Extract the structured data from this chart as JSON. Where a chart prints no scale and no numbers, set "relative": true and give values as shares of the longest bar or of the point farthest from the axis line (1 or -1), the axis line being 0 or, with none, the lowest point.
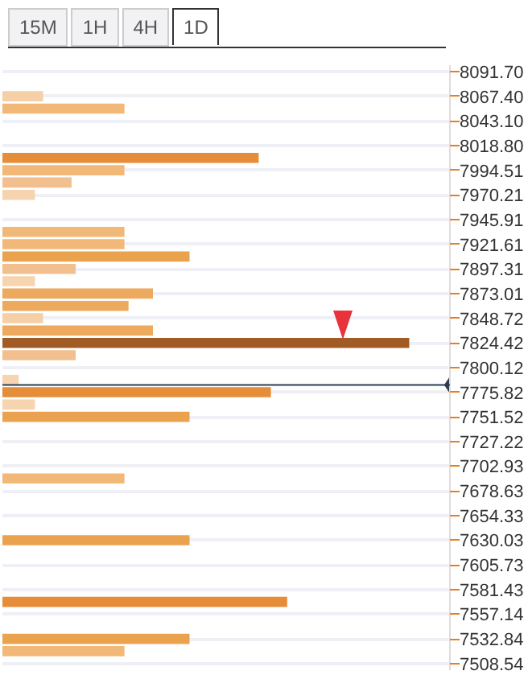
{
  "chart_data": {
    "type": "bar",
    "orientation": "horizontal",
    "relative": true,
    "annotations": [
      "15M",
      "1H",
      "4H",
      "1D"
    ],
    "x": [
      8067.4,
      8055.25,
      8006.66,
      7994.51,
      7982.36,
      7970.21,
      7933.76,
      7921.61,
      7909.46,
      7897.31,
      7885.16,
      7873.01,
      7860.87,
      7848.72,
      7836.57,
      7824.42,
      7812.27,
      7787.97,
      7775.82,
      7763.67,
      7751.52,
      7690.78,
      7630.03,
      7569.29,
      7532.84,
      7520.69
    ],
    "values": [
      0.1,
      0.3,
      0.63,
      0.3,
      0.17,
      0.08,
      0.3,
      0.3,
      0.46,
      0.18,
      0.08,
      0.37,
      0.31,
      0.1,
      0.37,
      1,
      0.18,
      0.04,
      0.66,
      0.08,
      0.46,
      0.3,
      0.46,
      0.7,
      0.46,
      0.3
    ],
    "colors": [
      "#f5cfa5",
      "#f1b877",
      "#e68d3a",
      "#f1b877",
      "#f2c08e",
      "#f7d4b0",
      "#f1b877",
      "#f1b877",
      "#eba24f",
      "#f2c08e",
      "#f7d4b0",
      "#eda95e",
      "#eda95e",
      "#f5cfa5",
      "#eda95e",
      "#a15c26",
      "#f2c08e",
      "#f7d4b0",
      "#e68d3a",
      "#f7d4b0",
      "#eba24f",
      "#f1b877",
      "#eba24f",
      "#e68d3a",
      "#eba24f",
      "#f1b877"
    ],
    "ylim": [
      7502,
      8098
    ],
    "yticks": [
      {
        "value": 8091.7,
        "label": "8091.70"
      },
      {
        "value": 8067.4,
        "label": "8067.40"
      },
      {
        "value": 8043.1,
        "label": "8043.10"
      },
      {
        "value": 8018.8,
        "label": "8018.80"
      },
      {
        "value": 7994.51,
        "label": "7994.51"
      },
      {
        "value": 7970.21,
        "label": "7970.21"
      },
      {
        "value": 7945.91,
        "label": "7945.91"
      },
      {
        "value": 7921.61,
        "label": "7921.61"
      },
      {
        "value": 7897.31,
        "label": "7897.31"
      },
      {
        "value": 7873.01,
        "label": "7873.01"
      },
      {
        "value": 7848.72,
        "label": "7848.72"
      },
      {
        "value": 7824.42,
        "label": "7824.42"
      },
      {
        "value": 7800.12,
        "label": "7800.12"
      },
      {
        "value": 7775.82,
        "label": "7775.82"
      },
      {
        "value": 7751.52,
        "label": "7751.52"
      },
      {
        "value": 7727.22,
        "label": "7727.22"
      },
      {
        "value": 7702.93,
        "label": "7702.93"
      },
      {
        "value": 7678.63,
        "label": "7678.63"
      },
      {
        "value": 7654.33,
        "label": "7654.33"
      },
      {
        "value": 7630.03,
        "label": "7630.03"
      },
      {
        "value": 7605.73,
        "label": "7605.73"
      },
      {
        "value": 7581.43,
        "label": "7581.43"
      },
      {
        "value": 7557.14,
        "label": "7557.14"
      },
      {
        "value": 7532.84,
        "label": "7532.84"
      },
      {
        "value": 7508.54,
        "label": "7508.54"
      }
    ],
    "ref_lines": [
      {
        "axis": "y",
        "value": 7783,
        "color": "#2c3e50"
      }
    ],
    "grid": "y",
    "tick_labels": "y"
  }
}
